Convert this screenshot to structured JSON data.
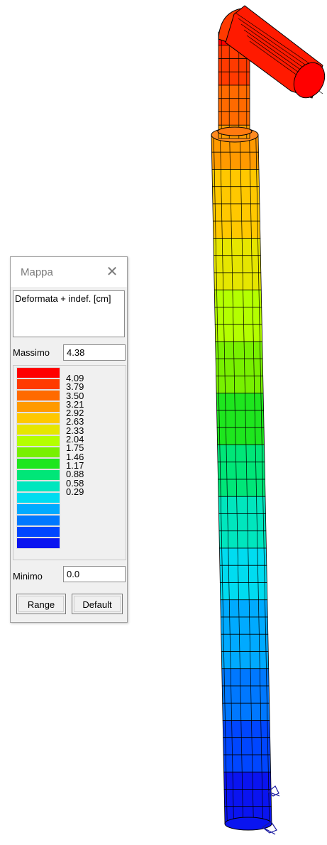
{
  "window": {
    "title": "Mappa",
    "close_glyph": "✕",
    "description": "Deformata + indef.  [cm]",
    "max_label": "Massimo",
    "max_value": "4.38",
    "min_label": "Minimo",
    "min_value": "0.0",
    "range_button": "Range",
    "default_button": "Default"
  },
  "legend": {
    "colors": [
      "#ff0000",
      "#ff3a00",
      "#ff6a00",
      "#ff9a00",
      "#ffc800",
      "#e6e600",
      "#b4ff00",
      "#78f000",
      "#1ee61e",
      "#00e678",
      "#00e6be",
      "#00dcf0",
      "#00aaff",
      "#0078ff",
      "#0046ff",
      "#0a14f0"
    ],
    "ticks": [
      "4.09",
      "3.79",
      "3.50",
      "3.21",
      "2.92",
      "2.63",
      "2.33",
      "2.04",
      "1.75",
      "1.46",
      "1.17",
      "0.88",
      "0.58",
      "0.29"
    ]
  },
  "model": {
    "value_min": 0.0,
    "value_max": 4.38
  }
}
